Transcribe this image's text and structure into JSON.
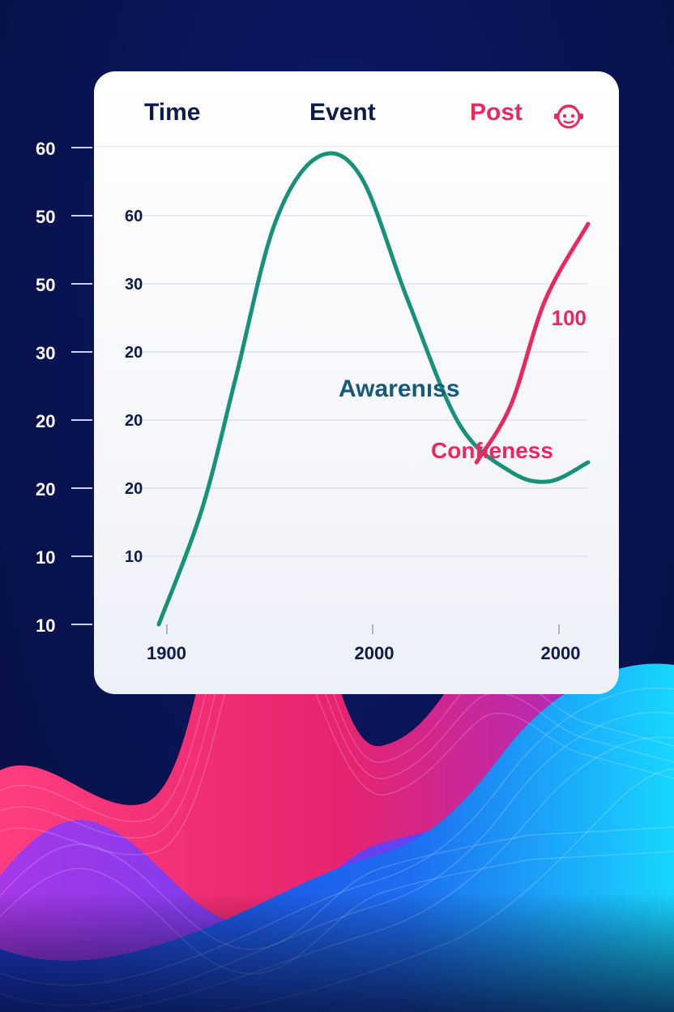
{
  "header": {
    "time_label": "Time",
    "event_label": "Event",
    "post_label": "Post",
    "post_icon": "face-badge-icon"
  },
  "outer_axis": {
    "tick_labels": [
      "60",
      "50",
      "50",
      "30",
      "20",
      "20",
      "10",
      "10"
    ]
  },
  "chart_data": {
    "type": "line",
    "x_tick_labels": [
      "1900",
      "2000",
      "2000"
    ],
    "inner_y_tick_labels": [
      "60",
      "30",
      "20",
      "20",
      "20",
      "10"
    ],
    "series": [
      {
        "name": "Awarenıss",
        "color": "#179177",
        "points": [
          [
            0.0,
            10
          ],
          [
            0.1,
            22
          ],
          [
            0.18,
            36
          ],
          [
            0.27,
            52
          ],
          [
            0.37,
            59
          ],
          [
            0.47,
            57
          ],
          [
            0.58,
            44
          ],
          [
            0.7,
            31
          ],
          [
            0.82,
            26
          ],
          [
            0.91,
            25
          ],
          [
            1.0,
            27
          ]
        ]
      },
      {
        "name": "Confıeness",
        "color": "#e8295f",
        "points": [
          [
            0.74,
            27
          ],
          [
            0.82,
            33
          ],
          [
            0.9,
            44
          ],
          [
            1.0,
            52
          ]
        ]
      }
    ],
    "annotations": [
      "100"
    ],
    "grid": true
  },
  "colors": {
    "background": "#0a1458",
    "card": "#ffffff",
    "accent_pink": "#e8295f",
    "accent_green": "#179177",
    "title_navy": "#0d1b4a"
  }
}
